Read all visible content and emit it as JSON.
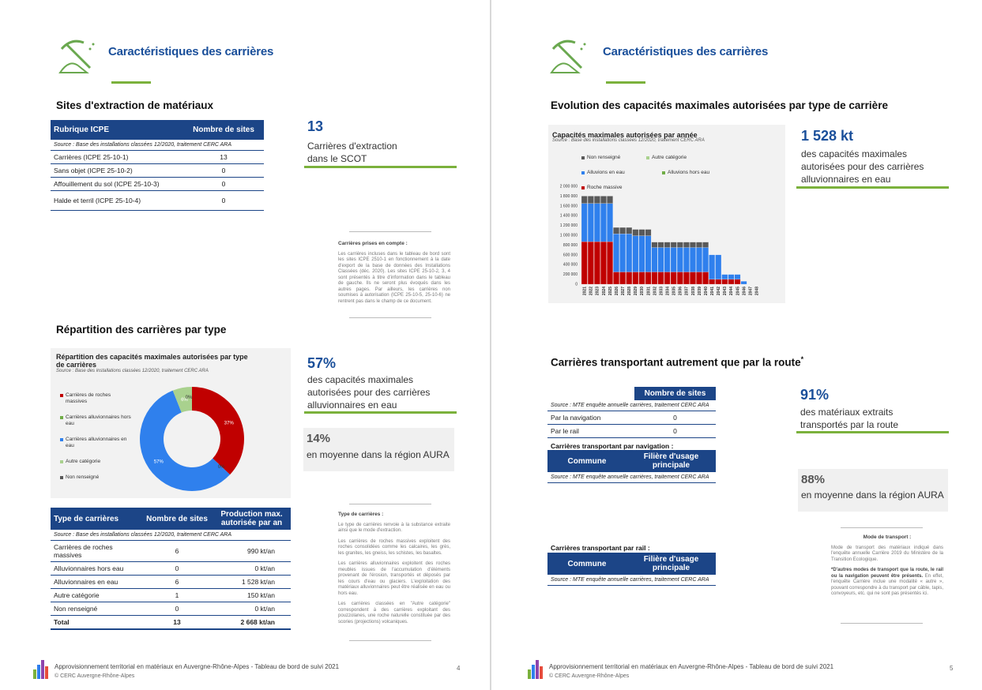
{
  "left": {
    "header_title": "Caractéristiques des carrières",
    "sites": {
      "section_title": "Sites d'extraction de matériaux",
      "table": {
        "headers": [
          "Rubrique ICPE",
          "Nombre de sites"
        ],
        "source": "Source : Base des installations classées 12/2020, traitement CERC ARA",
        "rows": [
          [
            "Carrières (ICPE 25-10-1)",
            "13"
          ],
          [
            "Sans objet (ICPE 25-10-2)",
            "0"
          ],
          [
            "Affouillement du sol (ICPE 25-10-3)",
            "0"
          ],
          [
            "Halde et terril (ICPE 25-10-4)",
            "0"
          ]
        ]
      },
      "kpi_value": "13",
      "kpi_text": [
        "Carrières d'extraction",
        "dans le SCOT"
      ],
      "note": {
        "title": "Carrières prises en compte :",
        "body": "Les carrières incluses dans le tableau de bord sont les sites ICPE 2510-1 en fonctionnement à la date d'export de la base de données des Installations Classées (déc. 2020). Les sites ICPE 25-10-2, 3, 4 sont présentés à titre d'information dans le tableau de gauche. Ils ne seront plus évoqués dans les autres pages. Par ailleurs, les carrières non soumises à autorisation (ICPE 25-10-5, 25-10-6) ne rentrent pas dans le champ de ce document."
      }
    },
    "repartition": {
      "section_title": "Répartition des carrières par type",
      "chart_data": {
        "type": "pie",
        "title": "Répartition des capacités maximales autorisées par type de carrières",
        "source": "Source : Base des installations classées 12/2020, traitement CERC ARA",
        "categories": [
          "Carrières de roches massives",
          "Carrières alluvionnaires hors eau",
          "Carrières alluvionnaires en eau",
          "Autre catégorie",
          "Non renseigné"
        ],
        "values": [
          37,
          0,
          57,
          6,
          0
        ],
        "data_labels": [
          "37%",
          "0%",
          "57%",
          "6%",
          "0%"
        ],
        "colors": [
          "#c00000",
          "#70ad47",
          "#2f80ed",
          "#a9d18e",
          "#595959"
        ],
        "legend": "left"
      },
      "kpi_value": "57%",
      "kpi_text": [
        "des capacités maximales",
        "autorisées pour des carrières",
        "alluvionnaires en eau"
      ],
      "grey_value": "14%",
      "grey_text": "en moyenne dans la région AURA",
      "table": {
        "headers": [
          "Type de carrières",
          "Nombre de sites",
          "Production max. autorisée par an"
        ],
        "source": "Source : Base des installations classées 12/2020, traitement CERC ARA",
        "rows": [
          [
            "Carrières de roches massives",
            "6",
            "990 kt/an"
          ],
          [
            "Alluvionnaires hors eau",
            "0",
            "0 kt/an"
          ],
          [
            "Alluvionnaires en eau",
            "6",
            "1 528 kt/an"
          ],
          [
            "Autre catégorie",
            "1",
            "150 kt/an"
          ],
          [
            "Non renseigné",
            "0",
            "0 kt/an"
          ]
        ],
        "total": [
          "Total",
          "13",
          "2 668 kt/an"
        ]
      },
      "note": {
        "title": "Type de carrières :",
        "paragraphs": [
          "Le type de carrières renvoie à la substance extraite ainsi que le mode d'extraction.",
          "Les carrières de roches massives exploitent des roches consolidées comme les calcaires, les grès, les granites, les gneiss, les schistes, les basaltes.",
          "Les carrières alluvionnaires exploitent des roches meubles issues de l'accumulation d'éléments provenant de l'érosion, transportés et déposés par les cours d'eau ou glaciers. L'exploitation des matériaux alluvionnaires peut être réalisée en eau ou hors eau.",
          "Les carrières classées en \"Autre catégorie\" correspondent à des carrières exploitant des pouzzolanes, une roche naturelle constituée par des scories (projections) volcaniques."
        ]
      }
    },
    "footer": {
      "line1": "Approvisionnement territorial en matériaux en Auvergne-Rhône-Alpes - Tableau de bord de suivi 2021",
      "line2": "© CERC Auvergne-Rhône-Alpes",
      "page": "4"
    }
  },
  "right": {
    "header_title": "Caractéristiques des carrières",
    "evolution": {
      "section_title": "Evolution des capacités maximales autorisées par type de carrière",
      "chart_data": {
        "type": "bar",
        "stacked": true,
        "title": "Capacités maximales autorisées par année",
        "source": "Source : Base des installations classées 12/2020, traitement CERC ARA",
        "categories": [
          "2021",
          "2022",
          "2023",
          "2024",
          "2025",
          "2026",
          "2027",
          "2028",
          "2029",
          "2030",
          "2031",
          "2032",
          "2033",
          "2034",
          "2035",
          "2036",
          "2037",
          "2038",
          "2039",
          "2040",
          "2041",
          "2042",
          "2043",
          "2044",
          "2045",
          "2046",
          "2047",
          "2048"
        ],
        "series": [
          {
            "name": "Roche massive",
            "color": "#c00000",
            "values": [
              870,
              870,
              870,
              870,
              870,
              250,
              250,
              250,
              250,
              250,
              250,
              250,
              250,
              250,
              250,
              250,
              250,
              250,
              250,
              250,
              100,
              100,
              100,
              100,
              100,
              0,
              0,
              0
            ]
          },
          {
            "name": "Alluvions hors eau",
            "color": "#70ad47",
            "values": [
              0,
              0,
              0,
              0,
              0,
              0,
              0,
              0,
              0,
              0,
              0,
              0,
              0,
              0,
              0,
              0,
              0,
              0,
              0,
              0,
              0,
              0,
              0,
              0,
              0,
              0,
              0,
              0
            ]
          },
          {
            "name": "Alluvions en eau",
            "color": "#2f80ed",
            "values": [
              780,
              780,
              780,
              780,
              780,
              780,
              780,
              780,
              740,
              740,
              740,
              500,
              500,
              500,
              500,
              500,
              500,
              500,
              500,
              500,
              500,
              500,
              100,
              100,
              100,
              60,
              0,
              0
            ]
          },
          {
            "name": "Autre catégorie",
            "color": "#a9d18e",
            "values": [
              0,
              0,
              0,
              0,
              0,
              0,
              0,
              0,
              0,
              0,
              0,
              0,
              0,
              0,
              0,
              0,
              0,
              0,
              0,
              0,
              0,
              0,
              0,
              0,
              0,
              0,
              0,
              0
            ]
          },
          {
            "name": "Non renseigné",
            "color": "#595959",
            "values": [
              150,
              150,
              150,
              150,
              150,
              130,
              130,
              130,
              130,
              130,
              130,
              110,
              110,
              110,
              110,
              110,
              110,
              110,
              110,
              110,
              0,
              0,
              0,
              0,
              0,
              0,
              0,
              0
            ]
          }
        ],
        "legend_order": [
          "Non renseigné",
          "Autre catégorie",
          "Alluvions en eau",
          "Alluvions hors eau",
          "Roche massive"
        ],
        "yticks": [
          "0",
          "200 000",
          "400 000",
          "600 000",
          "800 000",
          "1 000 000",
          "1 200 000",
          "1 400 000",
          "1 600 000",
          "1 800 000",
          "2 000 000"
        ],
        "ylim": [
          0,
          2000
        ]
      },
      "kpi_value": "1 528 kt",
      "kpi_text": [
        "des capacités maximales",
        "autorisées pour des carrières",
        "alluvionnaires en eau"
      ]
    },
    "transport": {
      "section_title": "Carrières transportant autrement que par la route",
      "section_title_mark": "*",
      "table": {
        "headers": [
          "",
          "Nombre de sites"
        ],
        "source": "Source : MTE enquête annuelle carrières, traitement CERC ARA",
        "rows": [
          [
            "Par la navigation",
            "0"
          ],
          [
            "Par le rail",
            "0"
          ]
        ]
      },
      "kpi_value": "91%",
      "kpi_text": [
        "des matériaux extraits",
        "transportés par la route"
      ],
      "grey_value": "88%",
      "grey_text": "en moyenne dans la région AURA",
      "navigation": {
        "title": "Carrières transportant par navigation :",
        "headers": [
          "Commune",
          "Filière d'usage principale"
        ],
        "source": "Source : MTE enquête annuelle carrières, traitement CERC ARA"
      },
      "rail": {
        "title": "Carrières transportant par rail :",
        "headers": [
          "Commune",
          "Filière d'usage principale"
        ],
        "source": "Source : MTE enquête annuelle carrières, traitement CERC ARA"
      },
      "note": {
        "title": "Mode de transport :",
        "p1": "Mode de transport des matériaux indiqué dans l'enquête annuelle Carrière 2019 du Ministère de la Transition Ecologique.",
        "p2_bold": "*D'autres modes de transport que la route, le rail ou la navigation peuvent être présents.",
        "p2_rest": " En effet, l'enquête Carrière inclue une modalité « autre », pouvant correspondre à du transport par câble, tapis, convoyeurs, etc. qui ne sont pas présentés ici."
      }
    },
    "footer": {
      "line1": "Approvisionnement territorial en matériaux en Auvergne-Rhône-Alpes - Tableau de bord de suivi 2021",
      "line2": "© CERC Auvergne-Rhône-Alpes",
      "page": "5"
    }
  }
}
